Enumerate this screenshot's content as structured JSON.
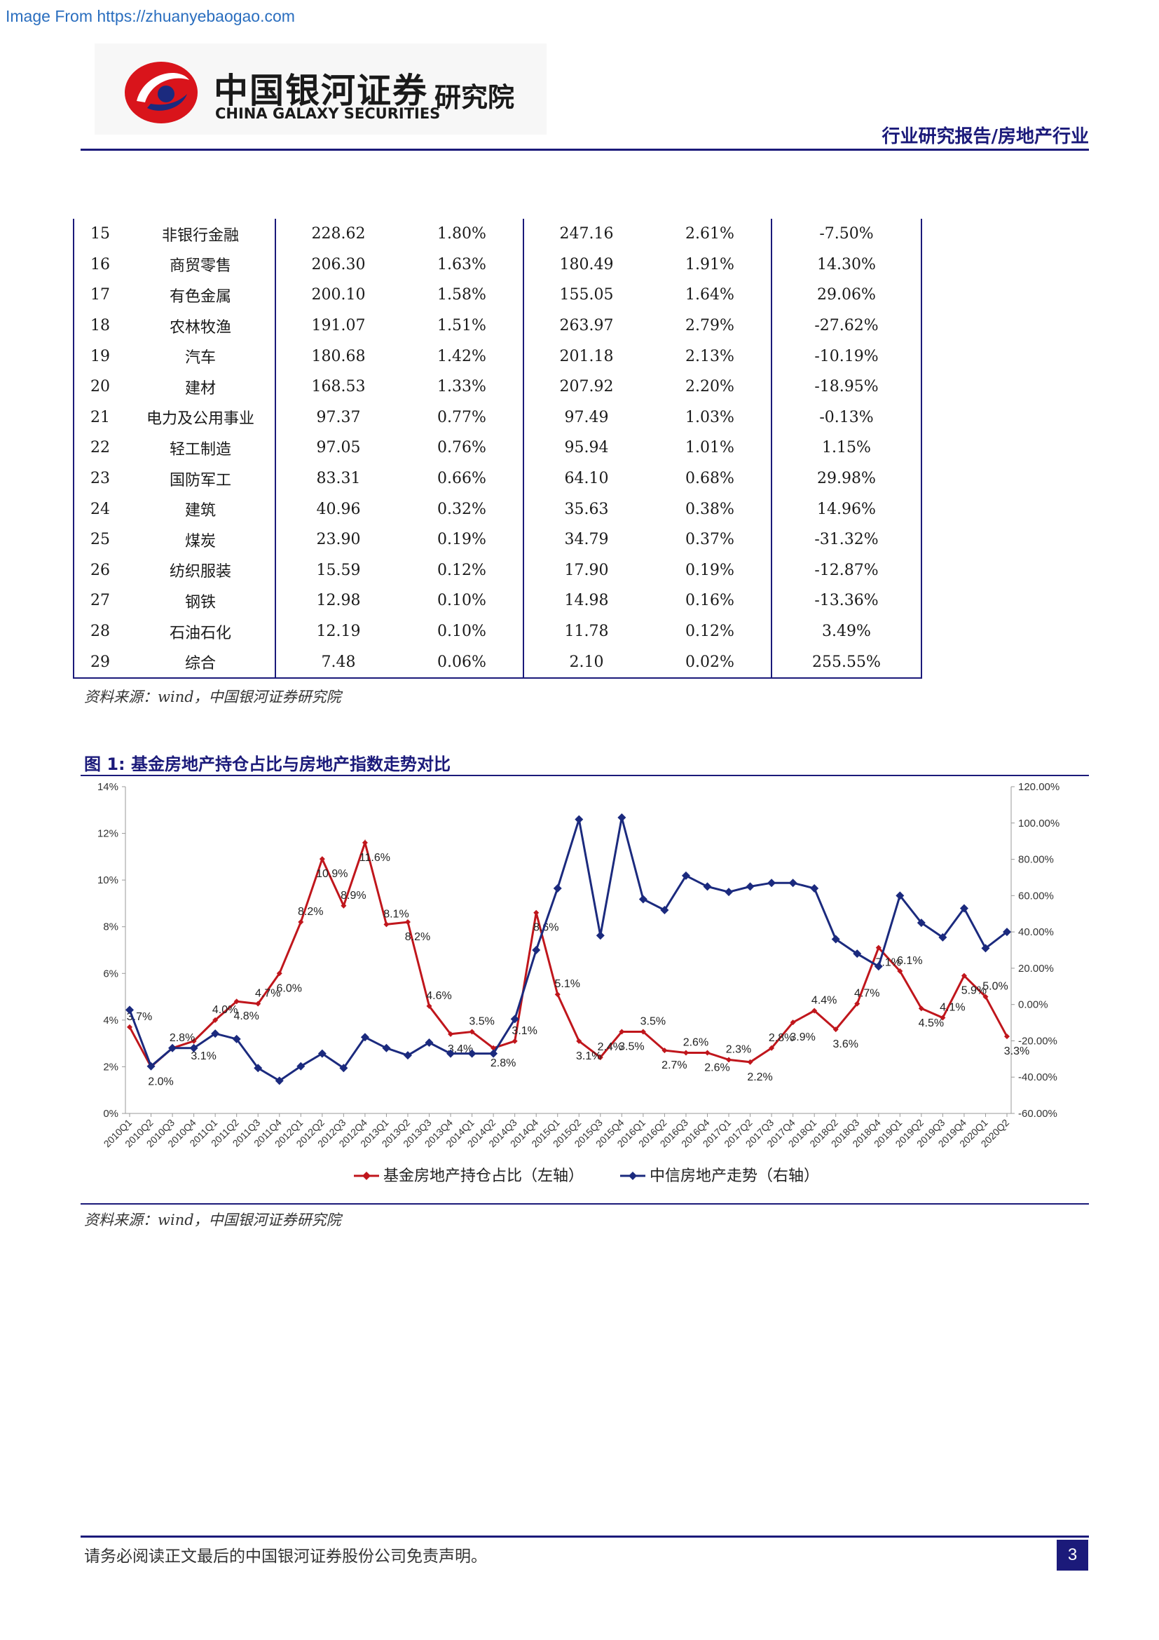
{
  "source_tag": "Image From https://zhuanyebaogao.com",
  "logo": {
    "cn": "中国银河证券",
    "en": "CHINA GALAXY SECURITIES",
    "institute": "研究院"
  },
  "header_right": "行业研究报告/房地产行业",
  "table": {
    "rows": [
      [
        "15",
        "非银行金融",
        "228.62",
        "1.80%",
        "247.16",
        "2.61%",
        "-7.50%"
      ],
      [
        "16",
        "商贸零售",
        "206.30",
        "1.63%",
        "180.49",
        "1.91%",
        "14.30%"
      ],
      [
        "17",
        "有色金属",
        "200.10",
        "1.58%",
        "155.05",
        "1.64%",
        "29.06%"
      ],
      [
        "18",
        "农林牧渔",
        "191.07",
        "1.51%",
        "263.97",
        "2.79%",
        "-27.62%"
      ],
      [
        "19",
        "汽车",
        "180.68",
        "1.42%",
        "201.18",
        "2.13%",
        "-10.19%"
      ],
      [
        "20",
        "建材",
        "168.53",
        "1.33%",
        "207.92",
        "2.20%",
        "-18.95%"
      ],
      [
        "21",
        "电力及公用事业",
        "97.37",
        "0.77%",
        "97.49",
        "1.03%",
        "-0.13%"
      ],
      [
        "22",
        "轻工制造",
        "97.05",
        "0.76%",
        "95.94",
        "1.01%",
        "1.15%"
      ],
      [
        "23",
        "国防军工",
        "83.31",
        "0.66%",
        "64.10",
        "0.68%",
        "29.98%"
      ],
      [
        "24",
        "建筑",
        "40.96",
        "0.32%",
        "35.63",
        "0.38%",
        "14.96%"
      ],
      [
        "25",
        "煤炭",
        "23.90",
        "0.19%",
        "34.79",
        "0.37%",
        "-31.32%"
      ],
      [
        "26",
        "纺织服装",
        "15.59",
        "0.12%",
        "17.90",
        "0.19%",
        "-12.87%"
      ],
      [
        "27",
        "钢铁",
        "12.98",
        "0.10%",
        "14.98",
        "0.16%",
        "-13.36%"
      ],
      [
        "28",
        "石油石化",
        "12.19",
        "0.10%",
        "11.78",
        "0.12%",
        "3.49%"
      ],
      [
        "29",
        "综合",
        "7.48",
        "0.06%",
        "2.10",
        "0.02%",
        "255.55%"
      ]
    ]
  },
  "source_note": "资料来源：wind，中国银河证券研究院",
  "figure_title": "图 1: 基金房地产持仓占比与房地产指数走势对比",
  "chart_data": {
    "type": "line",
    "categories": [
      "2010Q1",
      "2010Q2",
      "2010Q3",
      "2010Q4",
      "2011Q1",
      "2011Q2",
      "2011Q3",
      "2011Q4",
      "2012Q1",
      "2012Q2",
      "2012Q3",
      "2012Q4",
      "2013Q1",
      "2013Q2",
      "2013Q3",
      "2013Q4",
      "2014Q1",
      "2014Q2",
      "2014Q3",
      "2014Q4",
      "2015Q1",
      "2015Q2",
      "2015Q3",
      "2015Q4",
      "2016Q1",
      "2016Q2",
      "2016Q3",
      "2016Q4",
      "2017Q1",
      "2017Q2",
      "2017Q3",
      "2017Q4",
      "2018Q1",
      "2018Q2",
      "2018Q3",
      "2018Q4",
      "2019Q1",
      "2019Q2",
      "2019Q3",
      "2019Q4",
      "2020Q1",
      "2020Q2"
    ],
    "left_axis": {
      "min": 0,
      "max": 14,
      "step": 2,
      "ticks": [
        "0%",
        "2%",
        "4%",
        "6%",
        "8%",
        "10%",
        "12%",
        "14%"
      ]
    },
    "right_axis": {
      "min": -60,
      "max": 120,
      "step": 20,
      "ticks": [
        "-60.00%",
        "-40.00%",
        "-20.00%",
        "0.00%",
        "20.00%",
        "40.00%",
        "60.00%",
        "80.00%",
        "100.00%",
        "120.00%"
      ]
    },
    "series": [
      {
        "name": "基金房地产持仓占比（左轴）",
        "axis": "left",
        "color": "#c0161c",
        "values": [
          3.7,
          2.0,
          2.8,
          3.1,
          4.0,
          4.8,
          4.7,
          6.0,
          8.2,
          10.9,
          8.9,
          11.6,
          8.1,
          8.2,
          4.6,
          3.4,
          3.5,
          2.8,
          3.1,
          8.6,
          5.1,
          3.1,
          2.4,
          3.5,
          3.5,
          2.7,
          2.6,
          2.6,
          2.3,
          2.2,
          2.8,
          3.9,
          4.4,
          3.6,
          4.7,
          7.1,
          6.1,
          4.5,
          4.1,
          5.9,
          5.0,
          3.3
        ],
        "labels": [
          "3.7%",
          "2.0%",
          "2.8%",
          "3.1%",
          "4.0%",
          "4.8%",
          "4.7%",
          "6.0%",
          "8.2%",
          "10.9%",
          "8.9%",
          "11.6%",
          "8.1%",
          "8.2%",
          "4.6%",
          "3.4%",
          "3.5%",
          "2.8%",
          "3.1%",
          "8.6%",
          "5.1%",
          "3.1%",
          "2.4%",
          "3.5%",
          "3.5%",
          "2.7%",
          "2.6%",
          "2.6%",
          "2.3%",
          "2.2%",
          "2.8%",
          "3.9%",
          "4.4%",
          "3.6%",
          "4.7%",
          "7.1%",
          "6.1%",
          "4.5%",
          "4.1%",
          "5.9%",
          "5.0%",
          "3.3%"
        ]
      },
      {
        "name": "中信房地产走势（右轴）",
        "axis": "right",
        "color": "#1b2a7e",
        "values": [
          -3,
          -34,
          -24,
          -24,
          -16,
          -19,
          -35,
          -42,
          -34,
          -27,
          -35,
          -18,
          -24,
          -28,
          -21,
          -27,
          -27,
          -27,
          -8,
          30,
          64,
          102,
          38,
          103,
          58,
          52,
          71,
          65,
          62,
          65,
          67,
          67,
          64,
          36,
          28,
          21,
          60,
          45,
          37,
          53,
          31,
          40
        ]
      }
    ]
  },
  "figure_source_note": "资料来源：wind，中国银河证券研究院",
  "footer": {
    "text": "请务必阅读正文最后的中国银河证券股份公司免责声明。",
    "page": "3"
  }
}
